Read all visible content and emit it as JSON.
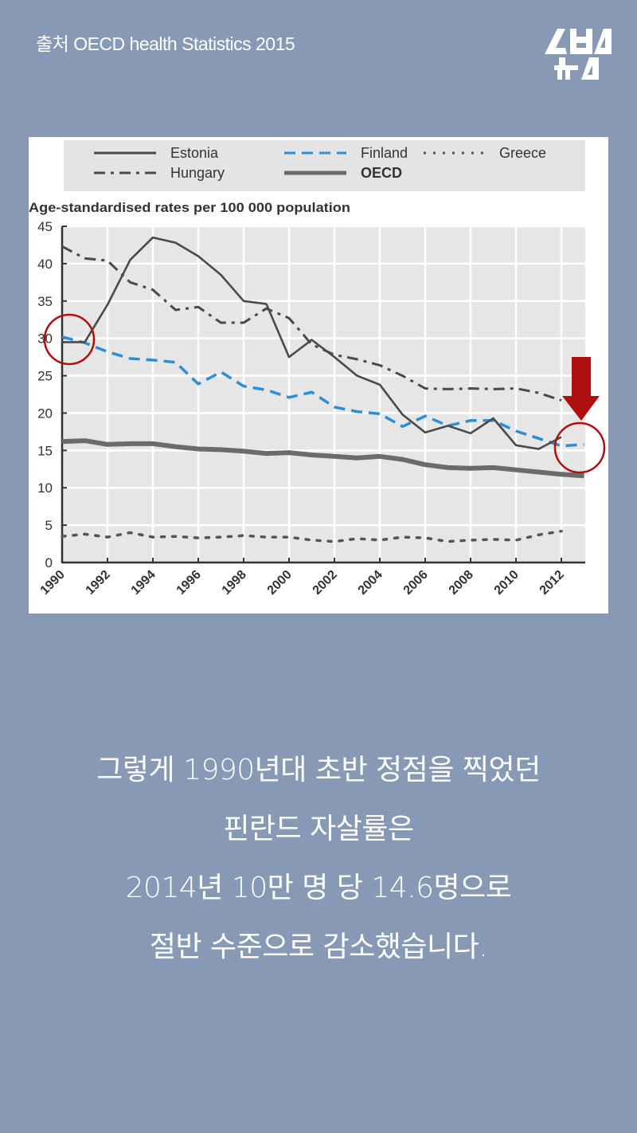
{
  "header": {
    "source_text": "출처 OECD health Statistics 2015",
    "logo_text": "SBS 뉴스",
    "logo_icon": "sbs-news-logo"
  },
  "colors": {
    "background": "#8799b4",
    "estonia": "#4a4a4a",
    "hungary": "#4a4a4a",
    "finland": "#2a8fd8",
    "greece": "#555555",
    "oecd": "#6b6b6b",
    "annotation_red": "#b00f0f",
    "plot_bg": "#e6e6e6",
    "legend_bg": "#e4e4e4"
  },
  "legend": {
    "items": [
      {
        "label": "Estonia",
        "style": "solid"
      },
      {
        "label": "Finland",
        "style": "dashed"
      },
      {
        "label": "Greece",
        "style": "dotted"
      },
      {
        "label": "Hungary",
        "style": "dash-dot"
      },
      {
        "label": "OECD",
        "style": "thick-solid"
      }
    ]
  },
  "chart_data": {
    "type": "line",
    "title": "",
    "ylabel": "Age-standardised rates per 100 000 population",
    "xlabel": "",
    "ylim": [
      0,
      45
    ],
    "yticks": [
      0,
      5,
      10,
      15,
      20,
      25,
      30,
      35,
      40,
      45
    ],
    "xticks": [
      "1990",
      "1992",
      "1994",
      "1996",
      "1998",
      "2000",
      "2002",
      "2004",
      "2006",
      "2008",
      "2010",
      "2012"
    ],
    "x": [
      1990,
      1991,
      1992,
      1993,
      1994,
      1995,
      1996,
      1997,
      1998,
      1999,
      2000,
      2001,
      2002,
      2003,
      2004,
      2005,
      2006,
      2007,
      2008,
      2009,
      2010,
      2011,
      2012,
      2013
    ],
    "grid": true,
    "legend_position": "top",
    "series": [
      {
        "name": "Estonia",
        "values": [
          29.5,
          29.5,
          34.5,
          40.5,
          43.5,
          42.8,
          41.0,
          38.5,
          35.0,
          34.6,
          27.5,
          29.8,
          27.5,
          25.0,
          23.8,
          19.8,
          17.4,
          18.3,
          17.3,
          19.3,
          15.7,
          15.2,
          16.8,
          null
        ]
      },
      {
        "name": "Hungary",
        "values": [
          42.3,
          40.7,
          40.4,
          37.5,
          36.5,
          33.8,
          34.2,
          32.1,
          32.1,
          34.0,
          32.7,
          29.2,
          27.8,
          27.2,
          26.4,
          25.0,
          23.3,
          23.2,
          23.3,
          23.2,
          23.3,
          22.7,
          21.7,
          null
        ]
      },
      {
        "name": "Finland",
        "values": [
          30.2,
          29.4,
          28.2,
          27.3,
          27.1,
          26.8,
          23.9,
          25.5,
          23.6,
          23.1,
          22.1,
          22.8,
          20.8,
          20.2,
          19.9,
          18.2,
          19.6,
          18.3,
          19.0,
          19.0,
          17.6,
          16.6,
          15.6,
          15.8
        ]
      },
      {
        "name": "Greece",
        "values": [
          3.5,
          3.8,
          3.4,
          4.0,
          3.4,
          3.5,
          3.3,
          3.4,
          3.6,
          3.4,
          3.4,
          3.0,
          2.8,
          3.2,
          3.0,
          3.4,
          3.3,
          2.8,
          3.0,
          3.1,
          3.0,
          3.7,
          4.2,
          null
        ]
      },
      {
        "name": "OECD",
        "values": [
          16.2,
          16.3,
          15.8,
          15.9,
          15.9,
          15.5,
          15.2,
          15.1,
          14.9,
          14.6,
          14.7,
          14.4,
          14.2,
          14.0,
          14.2,
          13.8,
          13.1,
          12.7,
          12.6,
          12.7,
          12.4,
          12.1,
          11.8,
          11.6
        ]
      }
    ],
    "annotations": [
      {
        "type": "circle",
        "at_year": 1990,
        "at_value": 30,
        "color": "#b00f0f"
      },
      {
        "type": "circle",
        "at_year": 2013,
        "at_value": 15.8,
        "color": "#b00f0f"
      },
      {
        "type": "arrow-down",
        "at_year": 2013,
        "color": "#b00f0f"
      }
    ]
  },
  "caption": {
    "lines": [
      "그렇게 1990년대 초반 정점을 찍었던",
      "핀란드 자살률은",
      "2014년 10만 명 당 14.6명으로",
      "절반 수준으로 감소했습니다."
    ]
  }
}
